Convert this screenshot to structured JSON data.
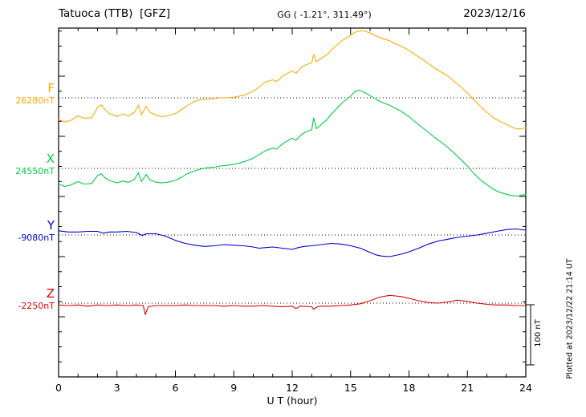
{
  "header": {
    "station": "Tatuoca (TTB)  [GFZ]",
    "coords": "GG ( -1.21°, 311.49°)",
    "date": "2023/12/16"
  },
  "footer": {
    "xlabel": "U T (hour)"
  },
  "annotations": {
    "scale_label": "100 nT",
    "plotted_note": "Plotted at 2023/12/22 21:14 UT"
  },
  "chart_data": {
    "type": "line",
    "title": "Tatuoca (TTB) [GFZ] magnetogram 2023/12/16",
    "xlabel": "U T (hour)",
    "xlim": [
      0,
      24
    ],
    "xticks": [
      0,
      3,
      6,
      9,
      12,
      15,
      18,
      21,
      24
    ],
    "x_minor_step_hours": 1,
    "scale_bar_nT": 100,
    "grid": "horizontal dotted baseline per trace",
    "legend_position": "left margin (trace letter + baseline value)",
    "series_units": "points are [UT hour, offset in nT from the series baseline]",
    "series": [
      {
        "name": "F",
        "baseline_label": "26280nT",
        "baseline_nT": 26280,
        "color": "#FFAA00",
        "points": [
          [
            0,
            -36
          ],
          [
            0.3,
            -40
          ],
          [
            0.6,
            -38
          ],
          [
            1,
            -30
          ],
          [
            1.3,
            -34
          ],
          [
            1.7,
            -33
          ],
          [
            2,
            -16
          ],
          [
            2.2,
            -12
          ],
          [
            2.4,
            -20
          ],
          [
            2.6,
            -26
          ],
          [
            3,
            -31
          ],
          [
            3.3,
            -27
          ],
          [
            3.6,
            -30
          ],
          [
            3.9,
            -24
          ],
          [
            4.1,
            -12
          ],
          [
            4.25,
            -28
          ],
          [
            4.5,
            -14
          ],
          [
            4.7,
            -24
          ],
          [
            5,
            -29
          ],
          [
            5.3,
            -31
          ],
          [
            5.6,
            -30
          ],
          [
            6,
            -26
          ],
          [
            6.3,
            -20
          ],
          [
            6.6,
            -13
          ],
          [
            7,
            -6
          ],
          [
            7.3,
            -3
          ],
          [
            7.6,
            -2
          ],
          [
            8,
            -1
          ],
          [
            8.3,
            0
          ],
          [
            8.6,
            0
          ],
          [
            9,
            1
          ],
          [
            9.3,
            3
          ],
          [
            9.6,
            5
          ],
          [
            10,
            11
          ],
          [
            10.3,
            18
          ],
          [
            10.6,
            26
          ],
          [
            11,
            30
          ],
          [
            11.2,
            27
          ],
          [
            11.4,
            33
          ],
          [
            11.6,
            38
          ],
          [
            12,
            45
          ],
          [
            12.2,
            41
          ],
          [
            12.5,
            52
          ],
          [
            12.8,
            56
          ],
          [
            13,
            58
          ],
          [
            13.1,
            72
          ],
          [
            13.25,
            60
          ],
          [
            13.5,
            66
          ],
          [
            13.8,
            72
          ],
          [
            14,
            79
          ],
          [
            14.3,
            88
          ],
          [
            14.6,
            96
          ],
          [
            15,
            104
          ],
          [
            15.3,
            110
          ],
          [
            15.6,
            112
          ],
          [
            15.8,
            110
          ],
          [
            16,
            108
          ],
          [
            16.3,
            103
          ],
          [
            16.6,
            99
          ],
          [
            17,
            95
          ],
          [
            17.3,
            90
          ],
          [
            17.6,
            86
          ],
          [
            18,
            79
          ],
          [
            18.3,
            72
          ],
          [
            18.6,
            66
          ],
          [
            19,
            57
          ],
          [
            19.3,
            50
          ],
          [
            19.6,
            44
          ],
          [
            20,
            36
          ],
          [
            20.3,
            28
          ],
          [
            20.6,
            20
          ],
          [
            21,
            8
          ],
          [
            21.3,
            -2
          ],
          [
            21.6,
            -12
          ],
          [
            22,
            -24
          ],
          [
            22.3,
            -32
          ],
          [
            22.6,
            -38
          ],
          [
            23,
            -44
          ],
          [
            23.3,
            -49
          ],
          [
            23.6,
            -52
          ],
          [
            24,
            -50
          ]
        ]
      },
      {
        "name": "X",
        "baseline_label": "24550nT",
        "baseline_nT": 24550,
        "color": "#00CC44",
        "points": [
          [
            0,
            -26
          ],
          [
            0.3,
            -30
          ],
          [
            0.6,
            -28
          ],
          [
            1,
            -22
          ],
          [
            1.3,
            -26
          ],
          [
            1.7,
            -25
          ],
          [
            2,
            -12
          ],
          [
            2.2,
            -9
          ],
          [
            2.4,
            -16
          ],
          [
            2.6,
            -20
          ],
          [
            3,
            -24
          ],
          [
            3.3,
            -21
          ],
          [
            3.6,
            -23
          ],
          [
            3.9,
            -18
          ],
          [
            4.1,
            -7
          ],
          [
            4.25,
            -22
          ],
          [
            4.5,
            -10
          ],
          [
            4.7,
            -19
          ],
          [
            5,
            -23
          ],
          [
            5.3,
            -24
          ],
          [
            5.6,
            -23
          ],
          [
            6,
            -20
          ],
          [
            6.3,
            -15
          ],
          [
            6.6,
            -9
          ],
          [
            7,
            -4
          ],
          [
            7.3,
            -1
          ],
          [
            7.6,
            1
          ],
          [
            8,
            2
          ],
          [
            8.3,
            4
          ],
          [
            8.6,
            5
          ],
          [
            9,
            7
          ],
          [
            9.3,
            9
          ],
          [
            9.6,
            12
          ],
          [
            10,
            17
          ],
          [
            10.3,
            23
          ],
          [
            10.6,
            29
          ],
          [
            11,
            34
          ],
          [
            11.2,
            32
          ],
          [
            11.4,
            38
          ],
          [
            11.6,
            43
          ],
          [
            12,
            50
          ],
          [
            12.2,
            47
          ],
          [
            12.5,
            57
          ],
          [
            12.8,
            62
          ],
          [
            13,
            64
          ],
          [
            13.1,
            84
          ],
          [
            13.25,
            66
          ],
          [
            13.5,
            73
          ],
          [
            13.8,
            82
          ],
          [
            14,
            90
          ],
          [
            14.3,
            100
          ],
          [
            14.6,
            110
          ],
          [
            15,
            120
          ],
          [
            15.2,
            127
          ],
          [
            15.4,
            130
          ],
          [
            15.6,
            128
          ],
          [
            15.8,
            125
          ],
          [
            16,
            121
          ],
          [
            16.3,
            115
          ],
          [
            16.6,
            110
          ],
          [
            17,
            105
          ],
          [
            17.3,
            100
          ],
          [
            17.6,
            95
          ],
          [
            18,
            86
          ],
          [
            18.3,
            78
          ],
          [
            18.6,
            70
          ],
          [
            19,
            60
          ],
          [
            19.3,
            52
          ],
          [
            19.6,
            45
          ],
          [
            20,
            35
          ],
          [
            20.3,
            26
          ],
          [
            20.6,
            17
          ],
          [
            21,
            4
          ],
          [
            21.3,
            -7
          ],
          [
            21.6,
            -17
          ],
          [
            22,
            -27
          ],
          [
            22.3,
            -34
          ],
          [
            22.6,
            -39
          ],
          [
            23,
            -43
          ],
          [
            23.3,
            -45
          ],
          [
            23.6,
            -46
          ],
          [
            24,
            -43
          ]
        ]
      },
      {
        "name": "Y",
        "baseline_label": "-9080nT",
        "baseline_nT": -9080,
        "color": "#0000CC",
        "points": [
          [
            0,
            7
          ],
          [
            0.5,
            5
          ],
          [
            1,
            5
          ],
          [
            1.5,
            6
          ],
          [
            2,
            6
          ],
          [
            2.3,
            3
          ],
          [
            2.6,
            5
          ],
          [
            3,
            5
          ],
          [
            3.5,
            6
          ],
          [
            4,
            4
          ],
          [
            4.3,
            -1
          ],
          [
            4.5,
            2
          ],
          [
            5,
            2
          ],
          [
            5.5,
            -2
          ],
          [
            6,
            -9
          ],
          [
            6.5,
            -14
          ],
          [
            7,
            -17
          ],
          [
            7.5,
            -19
          ],
          [
            8,
            -18
          ],
          [
            8.5,
            -16
          ],
          [
            9,
            -17
          ],
          [
            9.5,
            -18
          ],
          [
            10,
            -20
          ],
          [
            10.3,
            -22
          ],
          [
            10.6,
            -21
          ],
          [
            11,
            -20
          ],
          [
            11.5,
            -22
          ],
          [
            12,
            -24
          ],
          [
            12.3,
            -21
          ],
          [
            12.6,
            -19
          ],
          [
            13,
            -18
          ],
          [
            13.5,
            -16
          ],
          [
            14,
            -14
          ],
          [
            14.5,
            -15
          ],
          [
            15,
            -18
          ],
          [
            15.5,
            -22
          ],
          [
            16,
            -29
          ],
          [
            16.3,
            -33
          ],
          [
            16.6,
            -35
          ],
          [
            17,
            -36
          ],
          [
            17.3,
            -34
          ],
          [
            17.6,
            -32
          ],
          [
            18,
            -28
          ],
          [
            18.5,
            -22
          ],
          [
            19,
            -15
          ],
          [
            19.5,
            -10
          ],
          [
            20,
            -7
          ],
          [
            20.5,
            -4
          ],
          [
            21,
            -2
          ],
          [
            21.5,
            0
          ],
          [
            22,
            3
          ],
          [
            22.5,
            6
          ],
          [
            23,
            9
          ],
          [
            23.5,
            10
          ],
          [
            24,
            8
          ]
        ]
      },
      {
        "name": "Z",
        "baseline_label": "-2250nT",
        "baseline_nT": -2250,
        "color": "#DD0000",
        "points": [
          [
            0,
            -3
          ],
          [
            0.5,
            -4
          ],
          [
            1,
            -3
          ],
          [
            1.5,
            -5
          ],
          [
            2,
            -3
          ],
          [
            2.5,
            -4
          ],
          [
            3,
            -3
          ],
          [
            3.5,
            -4
          ],
          [
            4,
            -3
          ],
          [
            4.35,
            -4
          ],
          [
            4.45,
            -19
          ],
          [
            4.6,
            -6
          ],
          [
            5,
            -4
          ],
          [
            5.5,
            -4
          ],
          [
            6,
            -4
          ],
          [
            6.5,
            -3
          ],
          [
            7,
            -4
          ],
          [
            7.5,
            -4
          ],
          [
            8,
            -4
          ],
          [
            8.5,
            -5
          ],
          [
            9,
            -4
          ],
          [
            9.5,
            -5
          ],
          [
            10,
            -5
          ],
          [
            10.5,
            -4
          ],
          [
            11,
            -5
          ],
          [
            11.5,
            -6
          ],
          [
            12,
            -5
          ],
          [
            12.2,
            -9
          ],
          [
            12.4,
            -5
          ],
          [
            13,
            -6
          ],
          [
            13.1,
            -10
          ],
          [
            13.3,
            -6
          ],
          [
            13.5,
            -5
          ],
          [
            14,
            -5
          ],
          [
            14.5,
            -4
          ],
          [
            15,
            -3
          ],
          [
            15.5,
            -1
          ],
          [
            16,
            4
          ],
          [
            16.5,
            10
          ],
          [
            17,
            13
          ],
          [
            17.3,
            12
          ],
          [
            17.6,
            11
          ],
          [
            18,
            8
          ],
          [
            18.5,
            4
          ],
          [
            19,
            1
          ],
          [
            19.5,
            0
          ],
          [
            20,
            2
          ],
          [
            20.5,
            5
          ],
          [
            21,
            3
          ],
          [
            21.5,
            0
          ],
          [
            22,
            -2
          ],
          [
            22.5,
            -3
          ],
          [
            23,
            -3
          ],
          [
            23.5,
            -4
          ],
          [
            24,
            -4
          ]
        ]
      }
    ]
  }
}
